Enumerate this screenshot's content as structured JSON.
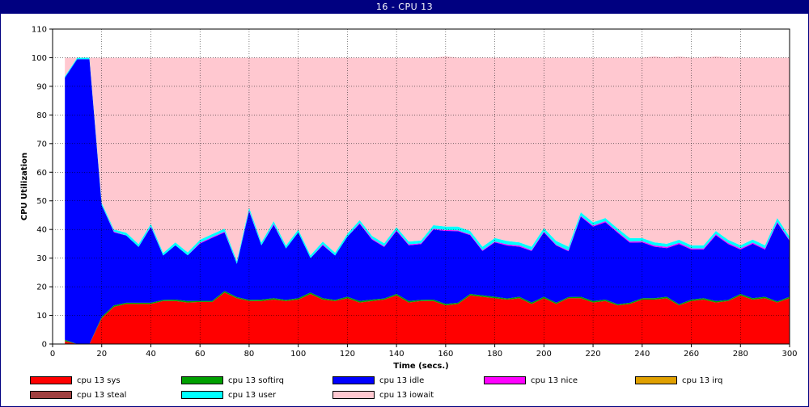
{
  "window": {
    "title": "16 - CPU 13"
  },
  "chart_data": {
    "type": "area",
    "stacked": true,
    "title": "16 - CPU 13",
    "xlabel": "Time (secs.)",
    "ylabel": "CPU Utilization",
    "xlim": [
      0,
      300
    ],
    "ylim": [
      0,
      110
    ],
    "xticks": [
      0,
      20,
      40,
      60,
      80,
      100,
      120,
      140,
      160,
      180,
      200,
      220,
      240,
      260,
      280,
      300
    ],
    "yticks": [
      0,
      10,
      20,
      30,
      40,
      50,
      60,
      70,
      80,
      90,
      100,
      110
    ],
    "grid": true,
    "legend_position": "bottom",
    "x": [
      5,
      10,
      15,
      20,
      25,
      30,
      35,
      40,
      45,
      50,
      55,
      60,
      65,
      70,
      75,
      80,
      85,
      90,
      95,
      100,
      105,
      110,
      115,
      120,
      125,
      130,
      135,
      140,
      145,
      150,
      155,
      160,
      165,
      170,
      175,
      180,
      185,
      190,
      195,
      200,
      205,
      210,
      215,
      220,
      225,
      230,
      235,
      240,
      245,
      250,
      255,
      260,
      265,
      270,
      275,
      280,
      285,
      290,
      295,
      300
    ],
    "series": [
      {
        "name": "cpu 13 sys",
        "color": "#ff0000",
        "values": [
          1,
          0,
          0,
          9,
          13,
          14,
          14,
          14,
          15,
          15,
          14.5,
          14.7,
          14.7,
          18,
          16,
          15,
          15,
          15.5,
          15,
          15.5,
          17.5,
          15.5,
          15,
          16,
          14.5,
          15,
          15.5,
          17,
          14.5,
          15,
          15,
          13.5,
          14,
          17,
          16.5,
          16,
          15.5,
          16,
          14,
          16,
          14,
          16,
          16,
          14.5,
          15,
          13.5,
          14,
          15.5,
          15.5,
          16,
          13.5,
          15,
          15.5,
          14.5,
          15,
          17,
          15.5,
          16,
          14.5,
          16
        ]
      },
      {
        "name": "cpu 13 softirq",
        "color": "#00a000",
        "values": [
          0.5,
          0,
          0,
          0.5,
          0.5,
          0.4,
          0.4,
          0.4,
          0.4,
          0.5,
          0.5,
          0.4,
          0.4,
          0.5,
          0.4,
          0.4,
          0.5,
          0.5,
          0.4,
          0.5,
          0.5,
          0.5,
          0.4,
          0.5,
          0.5,
          0.5,
          0.4,
          0.5,
          0.5,
          0.4,
          0.5,
          0.5,
          0.4,
          0.5,
          0.5,
          0.5,
          0.4,
          0.5,
          0.5,
          0.5,
          0.4,
          0.4,
          0.5,
          0.5,
          0.5,
          0.4,
          0.4,
          0.5,
          0.5,
          0.5,
          0.4,
          0.5,
          0.5,
          0.5,
          0.4,
          0.5,
          0.5,
          0.5,
          0.4,
          0.5
        ]
      },
      {
        "name": "cpu 13 idle",
        "color": "#0000ff",
        "values": [
          91.5,
          99.5,
          99.5,
          39,
          25.5,
          23.5,
          19.5,
          26.5,
          15.5,
          19,
          16,
          20,
          22,
          20.5,
          11.6,
          31,
          19,
          25.6,
          18,
          23,
          12,
          18.5,
          15.5,
          21,
          27,
          21,
          18,
          22,
          19.5,
          19.5,
          24.5,
          25.5,
          25,
          20.5,
          15.5,
          19,
          18.5,
          17.5,
          18,
          22.5,
          20,
          16,
          28,
          26,
          27,
          25,
          21,
          19.5,
          18,
          17,
          21,
          17.5,
          17,
          23,
          19.5,
          15.5,
          19,
          16.5,
          27.5,
          19.5
        ]
      },
      {
        "name": "cpu 13 nice",
        "color": "#ff00ff",
        "values": [
          0,
          0,
          0,
          0,
          0.3,
          0,
          0,
          0.2,
          0,
          0,
          0,
          0.3,
          0.3,
          0.3,
          0,
          0.3,
          0,
          0.3,
          0,
          0,
          0,
          0.3,
          0,
          0,
          0.3,
          0.3,
          0.3,
          0.3,
          0.3,
          0.3,
          0.3,
          0.3,
          0.3,
          0.3,
          0.3,
          0.3,
          0.4,
          0.4,
          0.3,
          0.3,
          0.3,
          0.3,
          0.3,
          0.4,
          0.4,
          0.4,
          0.4,
          0.4,
          0.4,
          0.4,
          0.4,
          0.4,
          0.4,
          0.4,
          0.4,
          0.4,
          0.4,
          0.4,
          0.3,
          0.3
        ]
      },
      {
        "name": "cpu 13 irq",
        "color": "#e0a000",
        "values": [
          0,
          0,
          0,
          0,
          0,
          0,
          0,
          0,
          0,
          0,
          0,
          0,
          0,
          0,
          0,
          0,
          0,
          0,
          0,
          0,
          0,
          0,
          0,
          0,
          0,
          0,
          0,
          0,
          0,
          0,
          0,
          0,
          0,
          0,
          0,
          0,
          0,
          0,
          0,
          0,
          0,
          0,
          0,
          0,
          0,
          0,
          0,
          0,
          0,
          0,
          0,
          0,
          0,
          0,
          0,
          0,
          0,
          0,
          0,
          0
        ]
      },
      {
        "name": "cpu 13 steal",
        "color": "#a04040",
        "values": [
          0,
          0,
          0,
          0,
          0,
          0,
          0,
          0,
          0,
          0,
          0,
          0,
          0,
          0,
          0,
          0,
          0,
          0,
          0,
          0,
          0,
          0,
          0,
          0,
          0,
          0,
          0,
          0,
          0,
          0,
          0,
          0,
          0,
          0,
          0,
          0,
          0,
          0,
          0,
          0,
          0,
          0,
          0,
          0,
          0,
          0,
          0,
          0,
          0,
          0,
          0,
          0,
          0,
          0,
          0,
          0,
          0,
          0,
          0,
          0
        ]
      },
      {
        "name": "cpu 13 user",
        "color": "#00ffff",
        "values": [
          0.5,
          0.5,
          0.5,
          0.8,
          0.7,
          1,
          1,
          0.9,
          0.9,
          1,
          1,
          1,
          1,
          1,
          1,
          1,
          1,
          1,
          1,
          1,
          1,
          1,
          1,
          1,
          1,
          1,
          1,
          1,
          1,
          1,
          1.2,
          1.2,
          1.3,
          1.2,
          1.2,
          1.2,
          1.2,
          1.1,
          1.2,
          1.2,
          1.3,
          1.3,
          1.2,
          1.1,
          1.1,
          1.1,
          1.2,
          1.1,
          1.1,
          1.1,
          1.1,
          1.1,
          1.1,
          1.1,
          1.1,
          1.1,
          1.1,
          1.1,
          1.3,
          1.2
        ]
      },
      {
        "name": "cpu 13 iowait",
        "color": "#ffc8d0",
        "values": [
          6.5,
          0,
          0,
          50.7,
          60,
          61.1,
          65.1,
          58,
          68.2,
          64.5,
          68,
          63.6,
          61.6,
          59.7,
          71,
          52.3,
          64.5,
          57.1,
          65.6,
          60,
          69,
          64.2,
          68.1,
          61.5,
          56.7,
          62.2,
          64.8,
          59.2,
          64.2,
          63.8,
          58.5,
          59.5,
          59,
          60.5,
          66,
          63,
          64,
          64.5,
          66,
          59.5,
          64,
          66,
          54,
          57.5,
          56,
          59.6,
          63,
          63,
          65,
          65,
          64,
          65.5,
          65.5,
          61,
          63.6,
          65.5,
          63.5,
          65.5,
          56,
          62.5
        ]
      }
    ]
  }
}
